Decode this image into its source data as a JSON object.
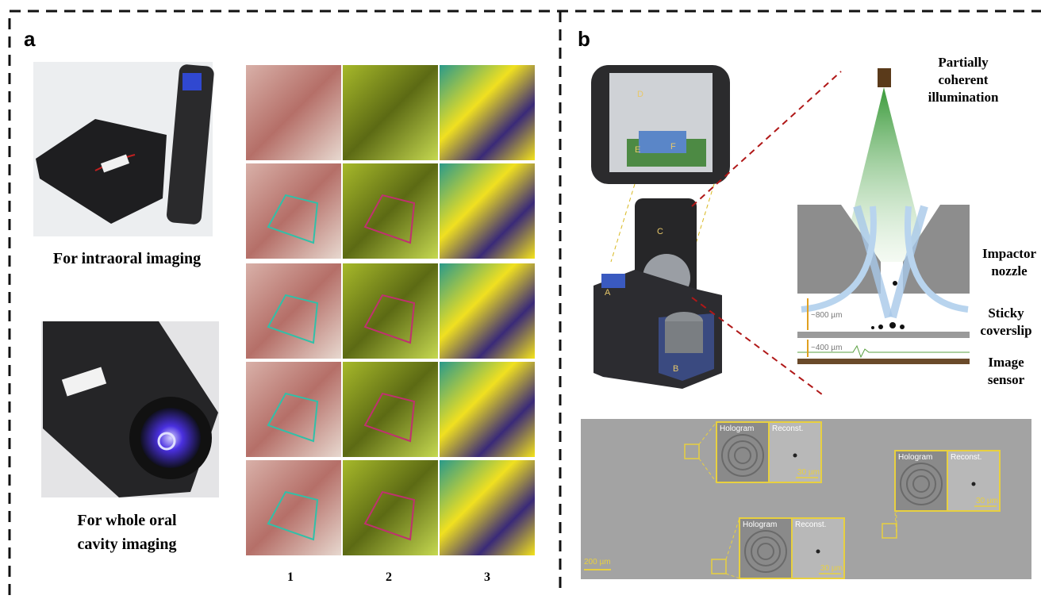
{
  "panel_a": {
    "label": "a",
    "device_captions": [
      [
        "For intraoral imaging"
      ],
      [
        "For whole oral",
        "cavity imaging"
      ]
    ],
    "column_labels": [
      "1",
      "2",
      "3"
    ]
  },
  "panel_b": {
    "label": "b",
    "device_parts": [
      "D",
      "E",
      "F",
      "C",
      "A",
      "B"
    ],
    "illumination": [
      "Partially",
      "coherent",
      "illumination"
    ],
    "nozzle": [
      "Impactor",
      "nozzle"
    ],
    "coverslip": [
      "Sticky",
      "coverslip"
    ],
    "sensor": [
      "Image",
      "sensor"
    ],
    "gaps": [
      "~800 µm",
      "~400 µm"
    ],
    "insets": [
      {
        "left": "Hologram",
        "right": "Reconst.",
        "scale": "30 µm"
      },
      {
        "left": "Hologram",
        "right": "Reconst.",
        "scale": "30 µm"
      },
      {
        "left": "Hologram",
        "right": "Reconst.",
        "scale": "30 µm"
      }
    ],
    "scale_bar": "200 µm"
  }
}
